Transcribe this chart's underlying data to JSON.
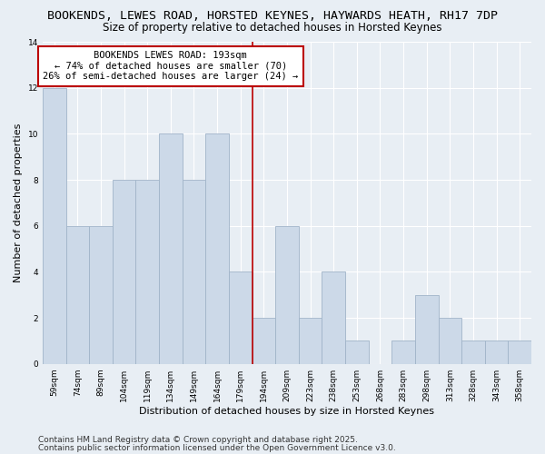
{
  "title": "BOOKENDS, LEWES ROAD, HORSTED KEYNES, HAYWARDS HEATH, RH17 7DP",
  "subtitle": "Size of property relative to detached houses in Horsted Keynes",
  "xlabel": "Distribution of detached houses by size in Horsted Keynes",
  "ylabel": "Number of detached properties",
  "bin_labels": [
    "59sqm",
    "74sqm",
    "89sqm",
    "104sqm",
    "119sqm",
    "134sqm",
    "149sqm",
    "164sqm",
    "179sqm",
    "194sqm",
    "209sqm",
    "223sqm",
    "238sqm",
    "253sqm",
    "268sqm",
    "283sqm",
    "298sqm",
    "313sqm",
    "328sqm",
    "343sqm",
    "358sqm"
  ],
  "bar_values": [
    12,
    6,
    6,
    8,
    8,
    10,
    8,
    10,
    4,
    2,
    6,
    2,
    4,
    1,
    0,
    1,
    3,
    2,
    1,
    1,
    1
  ],
  "bar_color": "#ccd9e8",
  "bar_edge_color": "#a0b4c8",
  "vline_x_idx": 9,
  "vline_color": "#bb0000",
  "ylim": [
    0,
    14
  ],
  "yticks": [
    0,
    2,
    4,
    6,
    8,
    10,
    12,
    14
  ],
  "annotation_title": "BOOKENDS LEWES ROAD: 193sqm",
  "annotation_line1": "← 74% of detached houses are smaller (70)",
  "annotation_line2": "26% of semi-detached houses are larger (24) →",
  "footnote1": "Contains HM Land Registry data © Crown copyright and database right 2025.",
  "footnote2": "Contains public sector information licensed under the Open Government Licence v3.0.",
  "bg_color": "#e8eef4",
  "plot_bg_color": "#e8eef4",
  "grid_color": "#ffffff",
  "title_fontsize": 9.5,
  "subtitle_fontsize": 8.5,
  "axis_label_fontsize": 8,
  "tick_fontsize": 6.5,
  "annotation_fontsize": 7.5,
  "footnote_fontsize": 6.5
}
